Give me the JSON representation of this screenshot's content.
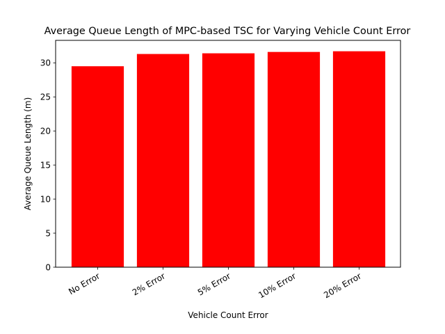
{
  "chart_data": {
    "type": "bar",
    "title": "Average Queue Length of MPC-based TSC for Varying Vehicle Count Error",
    "xlabel": "Vehicle Count Error",
    "ylabel": "Average Queue Length (m)",
    "categories": [
      "No Error",
      "2% Error",
      "5% Error",
      "10% Error",
      "20% Error"
    ],
    "values": [
      29.5,
      31.3,
      31.4,
      31.6,
      31.7
    ],
    "ylim": [
      0,
      33.3
    ],
    "yticks": [
      0,
      5,
      10,
      15,
      20,
      25,
      30
    ],
    "bar_color": "#ff0000",
    "grid": false,
    "legend": null
  }
}
